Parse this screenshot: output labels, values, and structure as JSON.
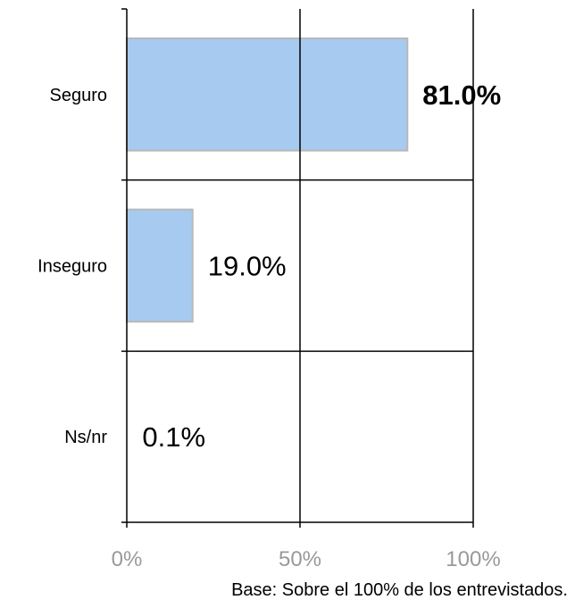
{
  "chart_data": {
    "type": "bar",
    "orientation": "horizontal",
    "categories": [
      "Seguro",
      "Inseguro",
      "Ns/nr"
    ],
    "values": [
      81.0,
      19.0,
      0.1
    ],
    "value_labels": [
      "81.0%",
      "19.0%",
      "0.1%"
    ],
    "highlight": [
      true,
      false,
      false
    ],
    "xlim": [
      0,
      100
    ],
    "x_ticks": [
      0,
      50,
      100
    ],
    "x_tick_labels": [
      "0%",
      "50%",
      "100%"
    ],
    "grid": true,
    "bar_color": "#a6caf0",
    "bar_border_color": "#b8b8b8",
    "tick_label_color": "#999999"
  },
  "note": "Base: Sobre el 100% de los entrevistados."
}
